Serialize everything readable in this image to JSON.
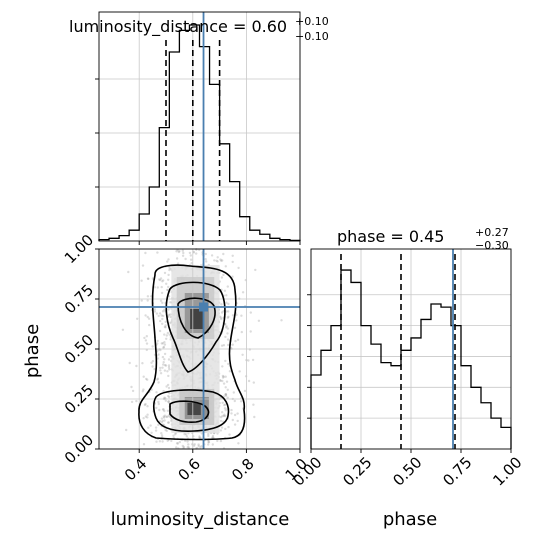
{
  "chart_data": [
    {
      "type": "histogram",
      "panel": "luminosity_distance-marginal",
      "title": {
        "prefix": "luminosity_distance = ",
        "median": "0.60",
        "plus": "+0.10",
        "minus": "−0.10"
      },
      "xlim": [
        0.25,
        1.0
      ],
      "grid": true,
      "bins": [
        0.25,
        0.2875,
        0.325,
        0.3625,
        0.4,
        0.4375,
        0.475,
        0.5125,
        0.55,
        0.5875,
        0.625,
        0.6625,
        0.7,
        0.7375,
        0.775,
        0.8125,
        0.85,
        0.8875,
        0.925,
        0.9625,
        1.0
      ],
      "values": [
        0.5,
        1,
        2,
        4,
        10,
        20,
        42,
        70,
        78,
        80,
        72,
        58,
        36,
        22,
        9,
        4,
        2.5,
        1,
        0.5,
        0.2
      ],
      "ymax": 80,
      "quantiles": [
        0.5,
        0.6,
        0.7
      ],
      "truth": 0.64
    },
    {
      "type": "histogram",
      "panel": "phase-marginal",
      "title": {
        "prefix": "phase = ",
        "median": "0.45",
        "plus": "+0.27",
        "minus": "−0.30"
      },
      "xlabel": "phase",
      "xlim": [
        0.0,
        1.0
      ],
      "xticks": [
        "0.00",
        "0.25",
        "0.50",
        "0.75",
        "1.00"
      ],
      "grid": true,
      "bins": [
        0,
        0.05,
        0.1,
        0.15,
        0.2,
        0.25,
        0.3,
        0.35,
        0.4,
        0.45,
        0.5,
        0.55,
        0.6,
        0.65,
        0.7,
        0.75,
        0.8,
        0.85,
        0.9,
        0.95,
        1.0
      ],
      "values": [
        1.2,
        1.6,
        2.0,
        2.9,
        2.7,
        2.0,
        1.7,
        1.4,
        1.35,
        1.6,
        1.8,
        2.1,
        2.35,
        2.3,
        2.0,
        1.35,
        1.0,
        0.75,
        0.5,
        0.35
      ],
      "ymax": 2.95,
      "quantiles": [
        0.15,
        0.45,
        0.72
      ],
      "truth": 0.71
    },
    {
      "type": "2d-density",
      "panel": "joint",
      "xlabel": "luminosity_distance",
      "ylabel": "phase",
      "xlim": [
        0.25,
        1.0
      ],
      "ylim": [
        0.0,
        1.0
      ],
      "xticks": [
        "0.4",
        "0.6",
        "0.8",
        "1.0"
      ],
      "yticks": [
        "0.00",
        "0.25",
        "0.50",
        "0.75",
        "1.00"
      ],
      "grid": true,
      "truth": {
        "x": 0.64,
        "y": 0.71
      },
      "colors": {
        "truth": "#4a7fb0",
        "contour": "#000000",
        "quantile": "#000000"
      }
    }
  ]
}
